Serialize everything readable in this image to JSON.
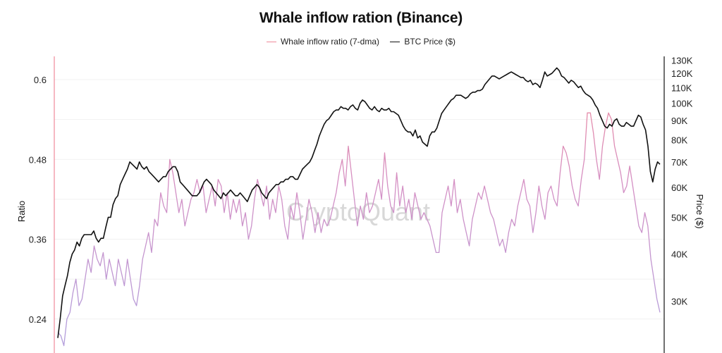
{
  "chart_data": {
    "type": "line",
    "title": "Whale inflow ration (Binance)",
    "ylabel": "Ratio",
    "y2label": "Price ($)",
    "watermark": "CryptoQuant",
    "ylim": [
      0.19,
      0.635
    ],
    "y2lim": [
      22000,
      133000
    ],
    "y2scale": "log",
    "left_ticks": [
      "0.24",
      "0.36",
      "0.48",
      "0.6"
    ],
    "right_ticks": [
      "30K",
      "40K",
      "50K",
      "60K",
      "70K",
      "80K",
      "90K",
      "100K",
      "110K",
      "120K",
      "130K"
    ],
    "grid": true,
    "legend_position": "top-center",
    "series": [
      {
        "name": "Whale inflow ratio (7-dma)",
        "axis": "left",
        "color_low": "#b39ddb",
        "color_high": "#ef8a9a",
        "values": [
          0.22,
          0.215,
          0.2,
          0.24,
          0.25,
          0.28,
          0.3,
          0.26,
          0.27,
          0.3,
          0.33,
          0.31,
          0.35,
          0.33,
          0.32,
          0.34,
          0.3,
          0.33,
          0.31,
          0.29,
          0.33,
          0.31,
          0.29,
          0.33,
          0.3,
          0.27,
          0.26,
          0.29,
          0.33,
          0.35,
          0.37,
          0.34,
          0.39,
          0.38,
          0.43,
          0.41,
          0.4,
          0.48,
          0.46,
          0.43,
          0.4,
          0.42,
          0.38,
          0.4,
          0.42,
          0.43,
          0.45,
          0.43,
          0.44,
          0.4,
          0.42,
          0.44,
          0.41,
          0.45,
          0.44,
          0.4,
          0.43,
          0.39,
          0.42,
          0.4,
          0.42,
          0.38,
          0.4,
          0.36,
          0.38,
          0.42,
          0.45,
          0.43,
          0.41,
          0.44,
          0.39,
          0.42,
          0.4,
          0.44,
          0.42,
          0.38,
          0.36,
          0.41,
          0.39,
          0.43,
          0.4,
          0.36,
          0.39,
          0.42,
          0.4,
          0.37,
          0.4,
          0.37,
          0.39,
          0.38,
          0.39,
          0.41,
          0.43,
          0.46,
          0.48,
          0.44,
          0.5,
          0.46,
          0.42,
          0.38,
          0.41,
          0.39,
          0.43,
          0.4,
          0.41,
          0.43,
          0.45,
          0.42,
          0.49,
          0.44,
          0.41,
          0.4,
          0.46,
          0.41,
          0.44,
          0.4,
          0.42,
          0.39,
          0.43,
          0.41,
          0.39,
          0.4,
          0.39,
          0.38,
          0.36,
          0.34,
          0.34,
          0.4,
          0.42,
          0.44,
          0.41,
          0.45,
          0.4,
          0.42,
          0.39,
          0.37,
          0.35,
          0.39,
          0.41,
          0.43,
          0.42,
          0.44,
          0.42,
          0.4,
          0.39,
          0.37,
          0.35,
          0.36,
          0.34,
          0.37,
          0.39,
          0.38,
          0.41,
          0.43,
          0.45,
          0.42,
          0.41,
          0.37,
          0.4,
          0.44,
          0.41,
          0.39,
          0.43,
          0.44,
          0.42,
          0.41,
          0.46,
          0.5,
          0.49,
          0.47,
          0.44,
          0.42,
          0.41,
          0.45,
          0.48,
          0.55,
          0.55,
          0.52,
          0.48,
          0.45,
          0.5,
          0.53,
          0.55,
          0.54,
          0.5,
          0.48,
          0.46,
          0.43,
          0.44,
          0.47,
          0.44,
          0.41,
          0.38,
          0.37,
          0.4,
          0.38,
          0.33,
          0.3,
          0.27,
          0.25
        ]
      },
      {
        "name": "BTC Price ($)",
        "axis": "right",
        "color": "#111111",
        "values": [
          24000,
          27000,
          31000,
          33000,
          35000,
          38000,
          40000,
          41000,
          43000,
          42000,
          44000,
          45000,
          45000,
          45000,
          45000,
          46000,
          44000,
          43000,
          44000,
          44000,
          47000,
          50000,
          50000,
          54000,
          56000,
          57000,
          61000,
          63000,
          65000,
          67000,
          70000,
          69000,
          68000,
          67000,
          70000,
          68000,
          67000,
          68000,
          66000,
          65000,
          64000,
          63000,
          62000,
          63000,
          64000,
          64000,
          66000,
          67000,
          68000,
          68000,
          66000,
          62000,
          61000,
          60000,
          59000,
          58000,
          57000,
          57000,
          57000,
          58000,
          60000,
          62000,
          63000,
          62000,
          61000,
          59000,
          58000,
          57000,
          56000,
          58000,
          57000,
          58000,
          59000,
          58000,
          57000,
          57000,
          58000,
          57000,
          56000,
          55000,
          57000,
          59000,
          60000,
          61000,
          60000,
          58000,
          57000,
          56000,
          58000,
          59000,
          60000,
          61000,
          61000,
          62000,
          62000,
          63000,
          63000,
          64000,
          64000,
          63000,
          63000,
          65000,
          67000,
          68000,
          69000,
          70000,
          72000,
          75000,
          78000,
          82000,
          85000,
          88000,
          90000,
          91000,
          93000,
          95000,
          96000,
          96000,
          98000,
          97000,
          97000,
          96000,
          98000,
          99000,
          97000,
          96000,
          100000,
          102000,
          101000,
          99000,
          97000,
          96000,
          98000,
          96000,
          95000,
          97000,
          96000,
          96000,
          97000,
          95000,
          95000,
          94000,
          93000,
          90000,
          87000,
          85000,
          84000,
          84000,
          82000,
          85000,
          81000,
          82000,
          79000,
          78000,
          77000,
          82000,
          84000,
          84000,
          86000,
          90000,
          94000,
          96000,
          98000,
          100000,
          102000,
          103000,
          105000,
          105000,
          105000,
          104000,
          103000,
          104000,
          106000,
          107000,
          107000,
          108000,
          108000,
          109000,
          112000,
          114000,
          116000,
          118000,
          118000,
          117000,
          116000,
          117000,
          118000,
          119000,
          120000,
          121000,
          120000,
          119000,
          118000,
          117000,
          117000,
          115000,
          114000,
          115000,
          112000,
          113000,
          112000,
          110000,
          115000,
          121000,
          118000,
          119000,
          120000,
          122000,
          124000,
          122000,
          118000,
          117000,
          115000,
          113000,
          115000,
          114000,
          112000,
          110000,
          111000,
          108000,
          106000,
          105000,
          104000,
          102000,
          99000,
          97000,
          93000,
          90000,
          87000,
          86000,
          88000,
          87000,
          90000,
          91000,
          88000,
          87000,
          87000,
          89000,
          88000,
          87000,
          87000,
          90000,
          93000,
          92000,
          88000,
          85000,
          77000,
          66000,
          62000,
          67000,
          70000,
          69000
        ]
      }
    ]
  }
}
